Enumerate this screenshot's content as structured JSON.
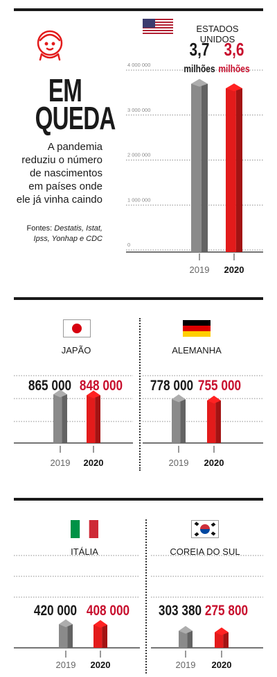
{
  "headline": {
    "title_line1": "EM",
    "title_line2": "QUEDA",
    "subtitle": "A pandemia reduziu o número de nascimentos em países onde ele já vinha caindo",
    "sources_label": "Fontes:",
    "sources_list": "Destatis, Istat, Ipss, Yonhap e CDC",
    "icon": "baby-icon"
  },
  "colors": {
    "series_2019": "#8a8a8a",
    "series_2020": "#e31b1b",
    "value_2020_text": "#c8102e",
    "text": "#1a1a1a"
  },
  "chart_data": [
    {
      "type": "bar",
      "country": "ESTADOS UNIDOS",
      "flag": "us-flag-icon",
      "categories": [
        "2019",
        "2020"
      ],
      "values": [
        3700000,
        3600000
      ],
      "value_labels": [
        "3,7",
        "3,6"
      ],
      "unit_labels": [
        "milhões",
        "milhões"
      ],
      "yticks": [
        "4 000 000",
        "3 000 000",
        "2 000 000",
        "1 000 000",
        "0"
      ],
      "ylim": [
        0,
        4000000
      ]
    },
    {
      "type": "bar",
      "country": "JAPÃO",
      "flag": "japan-flag-icon",
      "categories": [
        "2019",
        "2020"
      ],
      "values": [
        865000,
        848000
      ],
      "value_labels": [
        "865 000",
        "848 000"
      ]
    },
    {
      "type": "bar",
      "country": "ALEMANHA",
      "flag": "germany-flag-icon",
      "categories": [
        "2019",
        "2020"
      ],
      "values": [
        778000,
        755000
      ],
      "value_labels": [
        "778 000",
        "755 000"
      ]
    },
    {
      "type": "bar",
      "country": "ITÁLIA",
      "flag": "italy-flag-icon",
      "categories": [
        "2019",
        "2020"
      ],
      "values": [
        420000,
        408000
      ],
      "value_labels": [
        "420 000",
        "408 000"
      ]
    },
    {
      "type": "bar",
      "country": "COREIA DO SUL",
      "flag": "south-korea-flag-icon",
      "categories": [
        "2019",
        "2020"
      ],
      "values": [
        303380,
        275800
      ],
      "value_labels": [
        "303 380",
        "275 800"
      ]
    }
  ]
}
